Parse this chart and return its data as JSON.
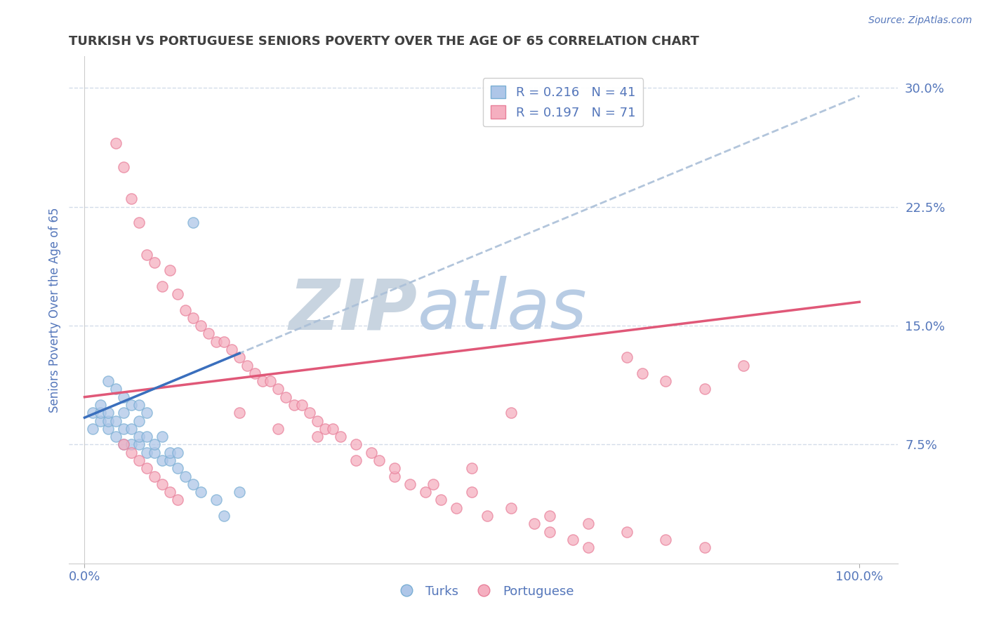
{
  "title": "TURKISH VS PORTUGUESE SENIORS POVERTY OVER THE AGE OF 65 CORRELATION CHART",
  "source": "Source: ZipAtlas.com",
  "ylabel": "Seniors Poverty Over the Age of 65",
  "turks_R": 0.216,
  "turks_N": 41,
  "portuguese_R": 0.197,
  "portuguese_N": 71,
  "turks_color": "#aec6e8",
  "turks_edge_color": "#7aafd4",
  "portuguese_color": "#f5afc0",
  "portuguese_edge_color": "#e8809a",
  "turks_line_color": "#3a6fbd",
  "turks_dash_color": "#aabfd8",
  "portuguese_line_color": "#e05878",
  "watermark_zip_color": "#c8d4e0",
  "watermark_atlas_color": "#b8cce4",
  "background_color": "#ffffff",
  "grid_color": "#c8d4e4",
  "title_color": "#404040",
  "axis_label_color": "#5577bb",
  "legend_turks_label": "R = 0.216   N = 41",
  "legend_portuguese_label": "R = 0.197   N = 71",
  "ylim": [
    0.0,
    0.32
  ],
  "xlim": [
    -0.02,
    1.05
  ],
  "turks_x": [
    0.01,
    0.01,
    0.02,
    0.02,
    0.02,
    0.03,
    0.03,
    0.03,
    0.03,
    0.04,
    0.04,
    0.04,
    0.05,
    0.05,
    0.05,
    0.05,
    0.06,
    0.06,
    0.06,
    0.07,
    0.07,
    0.07,
    0.07,
    0.08,
    0.08,
    0.08,
    0.09,
    0.09,
    0.1,
    0.1,
    0.11,
    0.11,
    0.12,
    0.12,
    0.13,
    0.14,
    0.14,
    0.15,
    0.17,
    0.18,
    0.2
  ],
  "turks_y": [
    0.085,
    0.095,
    0.09,
    0.095,
    0.1,
    0.085,
    0.09,
    0.095,
    0.115,
    0.08,
    0.09,
    0.11,
    0.075,
    0.085,
    0.095,
    0.105,
    0.075,
    0.085,
    0.1,
    0.075,
    0.08,
    0.09,
    0.1,
    0.07,
    0.08,
    0.095,
    0.07,
    0.075,
    0.065,
    0.08,
    0.065,
    0.07,
    0.06,
    0.07,
    0.055,
    0.05,
    0.215,
    0.045,
    0.04,
    0.03,
    0.045
  ],
  "portuguese_x": [
    0.04,
    0.05,
    0.06,
    0.07,
    0.08,
    0.09,
    0.1,
    0.11,
    0.12,
    0.13,
    0.14,
    0.15,
    0.16,
    0.17,
    0.18,
    0.19,
    0.2,
    0.21,
    0.22,
    0.23,
    0.24,
    0.25,
    0.26,
    0.27,
    0.28,
    0.29,
    0.3,
    0.31,
    0.32,
    0.33,
    0.35,
    0.37,
    0.38,
    0.4,
    0.42,
    0.44,
    0.46,
    0.48,
    0.5,
    0.52,
    0.55,
    0.58,
    0.6,
    0.63,
    0.65,
    0.7,
    0.72,
    0.75,
    0.8,
    0.85,
    0.05,
    0.06,
    0.07,
    0.08,
    0.09,
    0.1,
    0.11,
    0.12,
    0.2,
    0.25,
    0.3,
    0.35,
    0.4,
    0.45,
    0.5,
    0.55,
    0.6,
    0.65,
    0.7,
    0.75,
    0.8
  ],
  "portuguese_y": [
    0.265,
    0.25,
    0.23,
    0.215,
    0.195,
    0.19,
    0.175,
    0.185,
    0.17,
    0.16,
    0.155,
    0.15,
    0.145,
    0.14,
    0.14,
    0.135,
    0.13,
    0.125,
    0.12,
    0.115,
    0.115,
    0.11,
    0.105,
    0.1,
    0.1,
    0.095,
    0.09,
    0.085,
    0.085,
    0.08,
    0.075,
    0.07,
    0.065,
    0.055,
    0.05,
    0.045,
    0.04,
    0.035,
    0.06,
    0.03,
    0.095,
    0.025,
    0.02,
    0.015,
    0.01,
    0.13,
    0.12,
    0.115,
    0.11,
    0.125,
    0.075,
    0.07,
    0.065,
    0.06,
    0.055,
    0.05,
    0.045,
    0.04,
    0.095,
    0.085,
    0.08,
    0.065,
    0.06,
    0.05,
    0.045,
    0.035,
    0.03,
    0.025,
    0.02,
    0.015,
    0.01
  ],
  "turks_trend_x0": 0.0,
  "turks_trend_y0": 0.092,
  "turks_trend_x1": 1.0,
  "turks_trend_y1": 0.295,
  "port_trend_x0": 0.0,
  "port_trend_y0": 0.105,
  "port_trend_x1": 1.0,
  "port_trend_y1": 0.165
}
